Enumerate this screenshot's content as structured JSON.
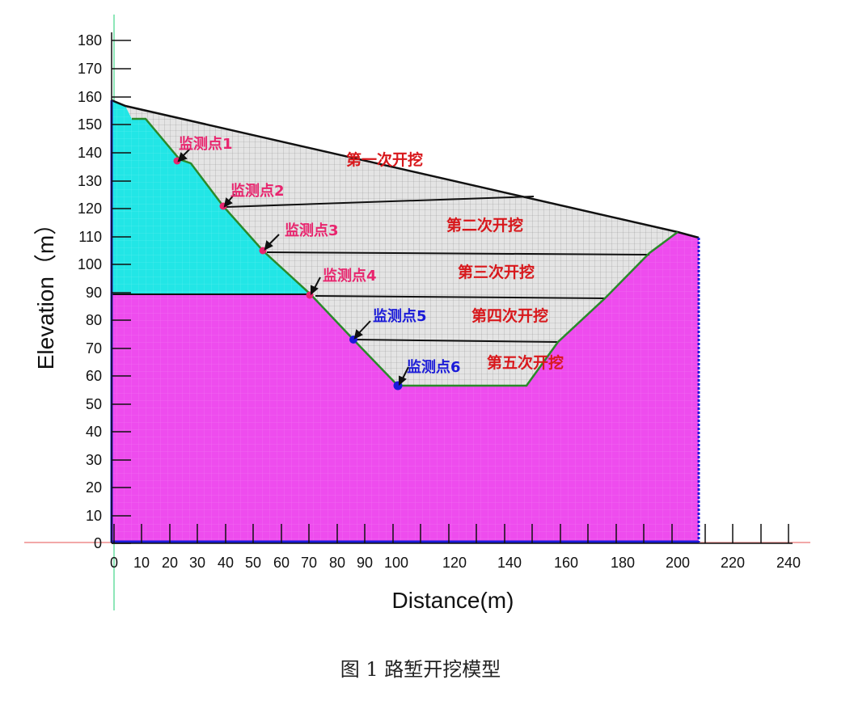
{
  "figure": {
    "x_axis_title": "Distance(m)",
    "y_axis_title": "Elevation（m）",
    "x_ticks": [
      "0",
      "10",
      "20",
      "30",
      "40",
      "50",
      "60",
      "70",
      "80",
      "90",
      "100",
      "120",
      "140",
      "160",
      "180",
      "200",
      "220",
      "240"
    ],
    "y_ticks": [
      "0",
      "10",
      "20",
      "30",
      "40",
      "50",
      "60",
      "70",
      "80",
      "90",
      "100",
      "110",
      "120",
      "130",
      "140",
      "150",
      "160",
      "170",
      "180"
    ],
    "stages": [
      "第一次开挖",
      "第二次开挖",
      "第三次开挖",
      "第四次开挖",
      "第五次开挖"
    ],
    "monitoring_points": [
      "监测点1",
      "监测点2",
      "监测点3",
      "监测点4",
      "监测点5",
      "监测点6"
    ],
    "colors": {
      "upper_layer": "#22e6e6",
      "lower_layer": "#ee4cee",
      "excavated_mesh": "#e4e4e4",
      "stage_text": "#d8181c",
      "point_pink": "#e8256e",
      "point_blue": "#1a1ad8"
    }
  },
  "caption": "图 1 路堑开挖模型"
}
